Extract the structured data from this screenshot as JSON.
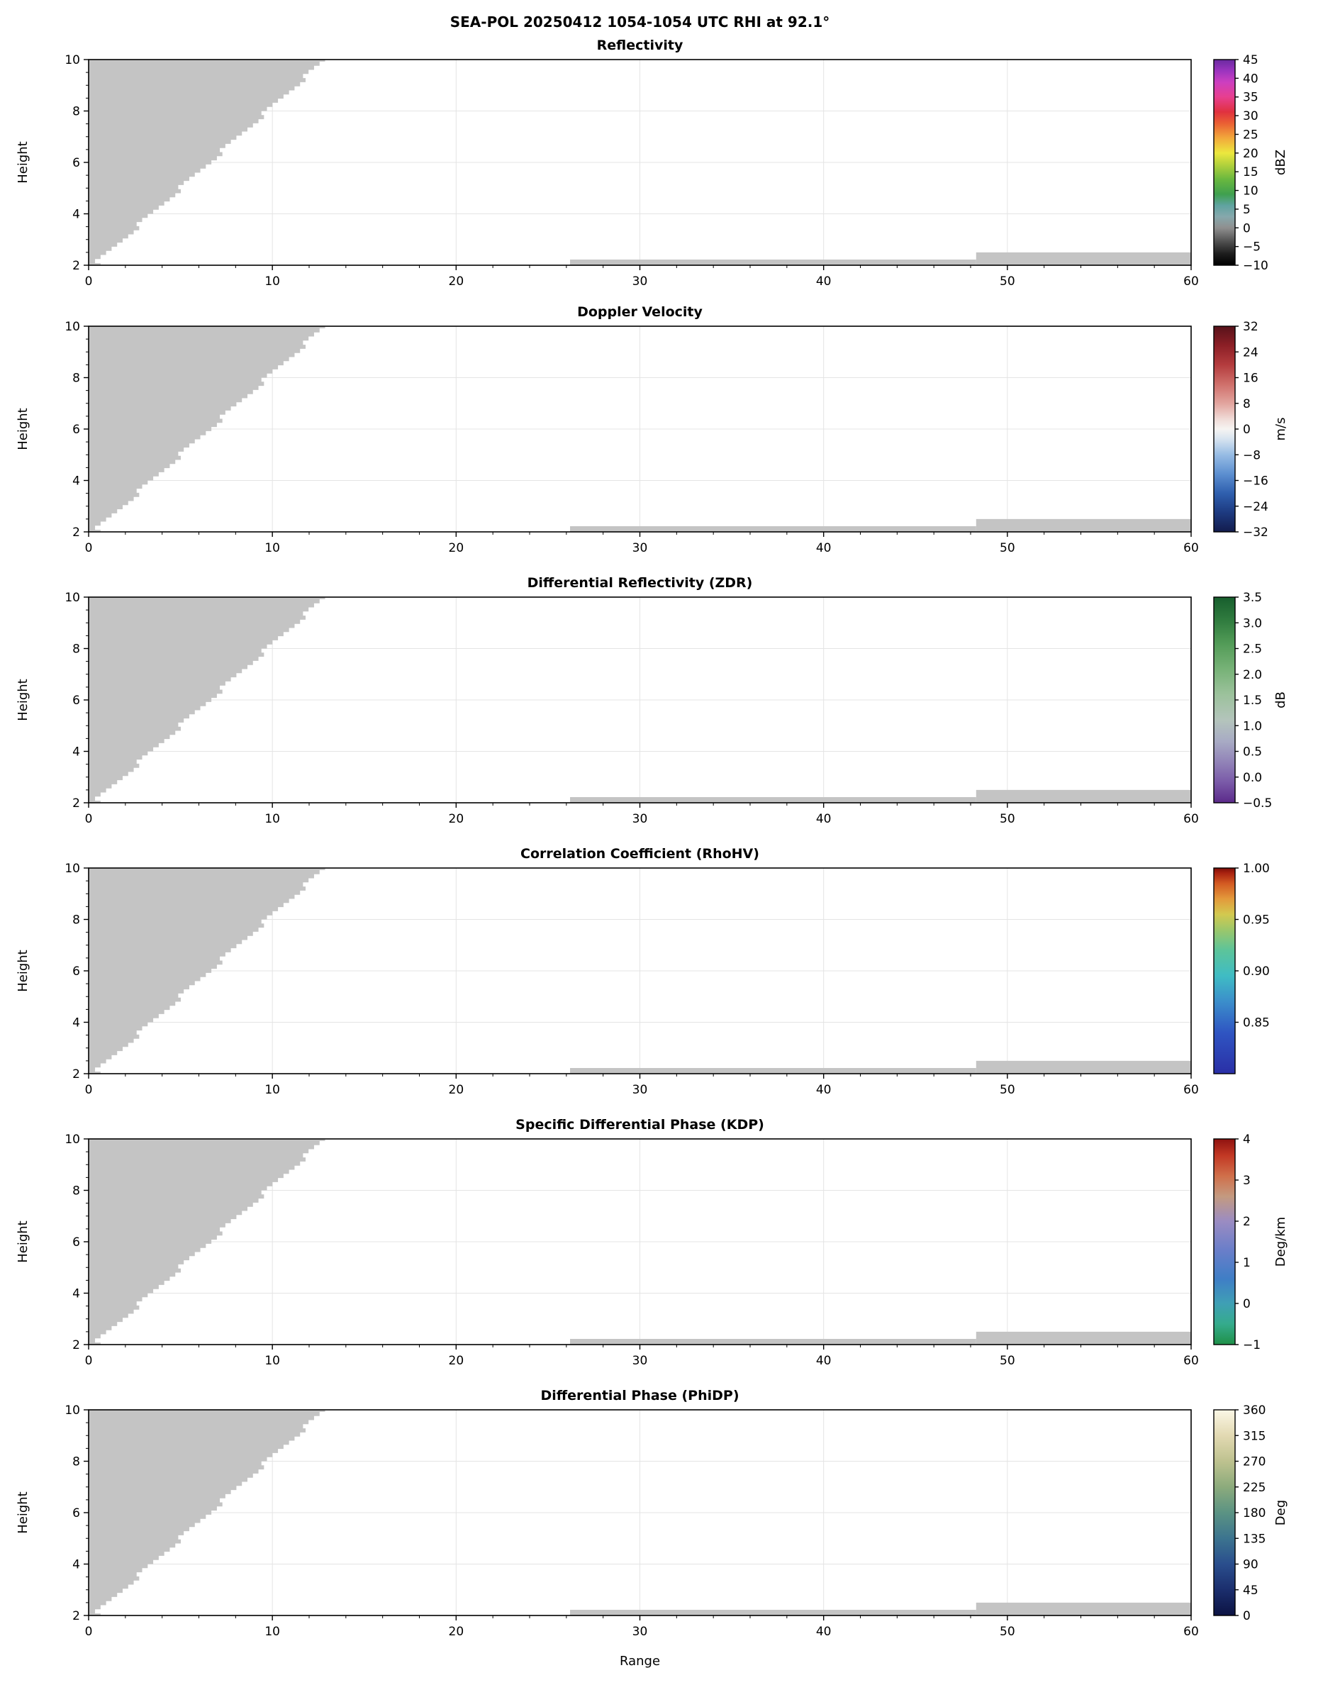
{
  "figure": {
    "background": "#ffffff",
    "grid_color": "#e4e4e4"
  },
  "chart_data": {
    "type": "heatmap",
    "suptitle": "SEA-POL 20250412 1054-1054 UTC RHI at 92.1°",
    "xlabel": "Range",
    "ylabel": "Height",
    "x_range": [
      0,
      60
    ],
    "x_ticks": [
      0,
      10,
      20,
      30,
      40,
      50,
      60
    ],
    "y_range": [
      2,
      10
    ],
    "y_ticks": [
      2,
      4,
      6,
      8,
      10
    ],
    "no_data_color": "#c4c4c4",
    "note": "Six-panel radar RHI; visible echo regions are uniform light gray (near-radar wedge plus two low-level strips), identical in every panel",
    "gray_regions": {
      "wedge": {
        "x_bottom": 0.55,
        "y_bottom": 2.08,
        "x_top": 13.0,
        "y_top": 10.0,
        "foot_x1": 0.65,
        "foot_y": 2.0
      },
      "strips": [
        {
          "x0": 26.2,
          "x1": 48.3,
          "y0": 2.0,
          "y1": 2.22
        },
        {
          "x0": 48.3,
          "x1": 60.0,
          "y0": 2.0,
          "y1": 2.5
        }
      ]
    },
    "panels": [
      {
        "title": "Reflectivity",
        "colorbar": {
          "unit": "dBZ",
          "range": [
            -10,
            45
          ],
          "ticks": [
            [
              45,
              "45"
            ],
            [
              40,
              "40"
            ],
            [
              35,
              "35"
            ],
            [
              30,
              "30"
            ],
            [
              25,
              "25"
            ],
            [
              20,
              "20"
            ],
            [
              15,
              "15"
            ],
            [
              10,
              "10"
            ],
            [
              5,
              "5"
            ],
            [
              0,
              "0"
            ],
            [
              -5,
              "−5"
            ],
            [
              -10,
              "−10"
            ]
          ],
          "stops": [
            [
              -10,
              "#000000"
            ],
            [
              -7,
              "#1c1c1c"
            ],
            [
              -4,
              "#4a4a4a"
            ],
            [
              0,
              "#8f8f8f"
            ],
            [
              3,
              "#86a8ac"
            ],
            [
              6,
              "#5fa3a0"
            ],
            [
              9,
              "#3fa04e"
            ],
            [
              13,
              "#6ab83f"
            ],
            [
              17,
              "#b5d23c"
            ],
            [
              20,
              "#ece83e"
            ],
            [
              24,
              "#f2a93b"
            ],
            [
              28,
              "#ea5f33"
            ],
            [
              31,
              "#e0313f"
            ],
            [
              35,
              "#e73f8f"
            ],
            [
              39,
              "#cc3fc0"
            ],
            [
              42,
              "#9b34bf"
            ],
            [
              45,
              "#6a2aa0"
            ]
          ]
        }
      },
      {
        "title": "Doppler Velocity",
        "colorbar": {
          "unit": "m/s",
          "range": [
            -32,
            32
          ],
          "ticks": [
            [
              32,
              "32"
            ],
            [
              24,
              "24"
            ],
            [
              16,
              "16"
            ],
            [
              8,
              "8"
            ],
            [
              0,
              "0"
            ],
            [
              -8,
              "−8"
            ],
            [
              -16,
              "−16"
            ],
            [
              -24,
              "−24"
            ],
            [
              -32,
              "−32"
            ]
          ],
          "stops": [
            [
              -32,
              "#131c4d"
            ],
            [
              -26,
              "#1d3a80"
            ],
            [
              -20,
              "#2f5fae"
            ],
            [
              -14,
              "#5c8fd0"
            ],
            [
              -8,
              "#97bce4"
            ],
            [
              -3,
              "#d8e4f0"
            ],
            [
              0,
              "#f6f4f2"
            ],
            [
              3,
              "#f0dcd8"
            ],
            [
              8,
              "#e2a49e"
            ],
            [
              14,
              "#cf6f6a"
            ],
            [
              20,
              "#b43c3e"
            ],
            [
              26,
              "#8c1f26"
            ],
            [
              32,
              "#57121a"
            ]
          ]
        }
      },
      {
        "title": "Differential Reflectivity (ZDR)",
        "colorbar": {
          "unit": "dB",
          "range": [
            -0.5,
            3.5
          ],
          "ticks": [
            [
              3.5,
              "3.5"
            ],
            [
              3.0,
              "3.0"
            ],
            [
              2.5,
              "2.5"
            ],
            [
              2.0,
              "2.0"
            ],
            [
              1.5,
              "1.5"
            ],
            [
              1.0,
              "1.0"
            ],
            [
              0.5,
              "0.5"
            ],
            [
              0.0,
              "0.0"
            ],
            [
              -0.5,
              "−0.5"
            ]
          ],
          "stops": [
            [
              -0.5,
              "#5b2a8a"
            ],
            [
              -0.1,
              "#7a5aa8"
            ],
            [
              0.3,
              "#9284b8"
            ],
            [
              0.7,
              "#a8abc4"
            ],
            [
              1.1,
              "#b4c4bc"
            ],
            [
              1.6,
              "#9cc29c"
            ],
            [
              2.1,
              "#77b277"
            ],
            [
              2.6,
              "#529b57"
            ],
            [
              3.0,
              "#337f41"
            ],
            [
              3.5,
              "#175e2d"
            ]
          ]
        }
      },
      {
        "title": "Correlation Coefficient (RhoHV)",
        "colorbar": {
          "unit": "",
          "range": [
            0.8,
            1.0
          ],
          "ticks": [
            [
              1.0,
              "1.00"
            ],
            [
              0.95,
              "0.95"
            ],
            [
              0.9,
              "0.90"
            ],
            [
              0.85,
              "0.85"
            ]
          ],
          "stops": [
            [
              0.8,
              "#2a2fa6"
            ],
            [
              0.84,
              "#2f55c2"
            ],
            [
              0.87,
              "#3b8ecb"
            ],
            [
              0.895,
              "#3fbcc4"
            ],
            [
              0.92,
              "#5cc49a"
            ],
            [
              0.94,
              "#9cc76a"
            ],
            [
              0.955,
              "#d3c94f"
            ],
            [
              0.97,
              "#e39a3b"
            ],
            [
              0.985,
              "#d35a22"
            ],
            [
              0.995,
              "#aa2310"
            ],
            [
              1.0,
              "#7c0e08"
            ]
          ]
        }
      },
      {
        "title": "Specific Differential Phase (KDP)",
        "colorbar": {
          "unit": "Deg/km",
          "range": [
            -1,
            4
          ],
          "ticks": [
            [
              4,
              "4"
            ],
            [
              3,
              "3"
            ],
            [
              2,
              "2"
            ],
            [
              1,
              "1"
            ],
            [
              0,
              "0"
            ],
            [
              -1,
              "−1"
            ]
          ],
          "stops": [
            [
              -1,
              "#1f9048"
            ],
            [
              -0.5,
              "#35ab8c"
            ],
            [
              0,
              "#3f9fb5"
            ],
            [
              0.6,
              "#3f7ec6"
            ],
            [
              1.3,
              "#6a7ec9"
            ],
            [
              2.0,
              "#9b8cc2"
            ],
            [
              2.6,
              "#c49a80"
            ],
            [
              3.1,
              "#d06f4a"
            ],
            [
              3.6,
              "#c23824"
            ],
            [
              4,
              "#8f1210"
            ]
          ]
        }
      },
      {
        "title": "Differential Phase (PhiDP)",
        "colorbar": {
          "unit": "Deg",
          "range": [
            0,
            360
          ],
          "ticks": [
            [
              360,
              "360"
            ],
            [
              315,
              "315"
            ],
            [
              270,
              "270"
            ],
            [
              225,
              "225"
            ],
            [
              180,
              "180"
            ],
            [
              135,
              "135"
            ],
            [
              90,
              "90"
            ],
            [
              45,
              "45"
            ],
            [
              0,
              "0"
            ]
          ],
          "stops": [
            [
              0,
              "#0c1343"
            ],
            [
              45,
              "#1b2e6d"
            ],
            [
              90,
              "#2a4e8d"
            ],
            [
              135,
              "#3c748f"
            ],
            [
              180,
              "#5b9383"
            ],
            [
              225,
              "#8cab7c"
            ],
            [
              270,
              "#bec28f"
            ],
            [
              315,
              "#e2d9b2"
            ],
            [
              360,
              "#fbf7e6"
            ]
          ]
        }
      }
    ]
  }
}
